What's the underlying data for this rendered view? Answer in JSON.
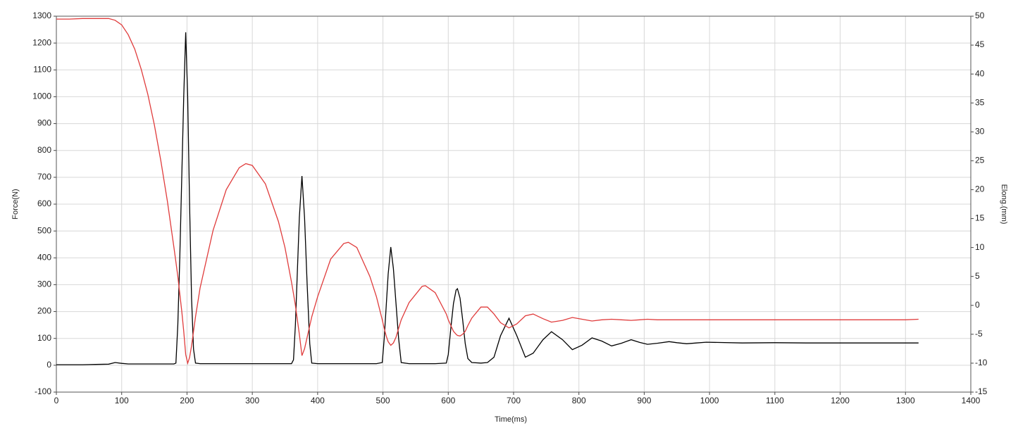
{
  "chart_data": {
    "type": "line",
    "xlabel": "Time(ms)",
    "ylabel": "Force(N)",
    "y2label": "Elong.(mm)",
    "x": [
      0,
      20,
      40,
      60,
      80,
      90,
      100,
      110,
      120,
      130,
      140,
      150,
      160,
      170,
      180,
      183,
      186,
      189,
      192,
      195,
      198,
      201,
      204,
      207,
      210,
      213,
      220,
      240,
      260,
      280,
      290,
      300,
      320,
      340,
      350,
      360,
      363,
      366,
      369,
      372,
      376,
      380,
      384,
      388,
      391,
      400,
      420,
      440,
      447,
      460,
      480,
      490,
      499,
      502,
      505,
      508,
      512,
      516,
      520,
      524,
      528,
      540,
      560,
      565,
      580,
      597,
      600,
      604,
      608,
      612,
      614,
      618,
      622,
      626,
      630,
      636,
      650,
      660,
      670,
      680,
      693,
      705,
      718,
      730,
      745,
      758,
      775,
      790,
      805,
      820,
      835,
      850,
      865,
      880,
      893,
      905,
      920,
      938,
      950,
      965,
      980,
      995,
      1050,
      1100,
      1150,
      1200,
      1250,
      1300,
      1320
    ],
    "series": [
      {
        "color": "#000000",
        "values": [
          2,
          2,
          2,
          3,
          4,
          10,
          7,
          5,
          5,
          5,
          5,
          5,
          5,
          5,
          5,
          8,
          150,
          400,
          700,
          1000,
          1240,
          1000,
          600,
          250,
          60,
          8,
          6,
          6,
          6,
          6,
          6,
          6,
          6,
          6,
          6,
          6,
          20,
          150,
          350,
          550,
          705,
          550,
          300,
          80,
          8,
          6,
          6,
          6,
          6,
          6,
          6,
          6,
          10,
          100,
          220,
          340,
          440,
          360,
          230,
          100,
          10,
          6,
          6,
          6,
          6,
          8,
          40,
          140,
          230,
          280,
          285,
          250,
          170,
          80,
          25,
          10,
          8,
          10,
          30,
          110,
          175,
          110,
          30,
          45,
          95,
          125,
          95,
          58,
          75,
          102,
          90,
          72,
          82,
          95,
          85,
          78,
          82,
          88,
          84,
          80,
          83,
          86,
          83,
          84,
          83,
          83,
          83,
          83,
          83
        ]
      },
      {
        "color": "#e03c3c",
        "axis": "y2",
        "values": [
          49.5,
          49.5,
          49.6,
          49.6,
          49.6,
          49.3,
          48.5,
          46.8,
          44.3,
          40.8,
          36.5,
          31.2,
          25,
          18,
          10,
          7.5,
          5,
          2,
          -1,
          -4.5,
          -8.5,
          -10,
          -9,
          -7,
          -4.5,
          -2,
          3,
          13,
          20,
          23.8,
          24.5,
          24.2,
          21,
          14.5,
          10,
          4,
          2,
          0,
          -2.5,
          -5,
          -8.7,
          -7.5,
          -5.5,
          -3.5,
          -2,
          1.5,
          8,
          10.7,
          10.9,
          10,
          5,
          1.5,
          -2.5,
          -4,
          -5.3,
          -6.3,
          -6.9,
          -6.5,
          -5.5,
          -4,
          -2.5,
          0.5,
          3.3,
          3.4,
          2.2,
          -1.5,
          -2.5,
          -3.5,
          -4.5,
          -5,
          -5.2,
          -5.3,
          -5,
          -4.5,
          -3.5,
          -2.2,
          -0.3,
          -0.3,
          -1.5,
          -3,
          -3.9,
          -3.2,
          -1.8,
          -1.5,
          -2.3,
          -2.9,
          -2.6,
          -2.1,
          -2.4,
          -2.7,
          -2.5,
          -2.4,
          -2.5,
          -2.6,
          -2.5,
          -2.4,
          -2.5,
          -2.5,
          -2.5,
          -2.5,
          -2.5,
          -2.5,
          -2.5,
          -2.5,
          -2.5,
          -2.5,
          -2.5,
          -2.5,
          -2.4
        ]
      }
    ],
    "xlim": [
      0,
      1400
    ],
    "xticks": [
      0,
      100,
      200,
      300,
      400,
      500,
      600,
      700,
      800,
      900,
      1000,
      1100,
      1200,
      1300,
      1400
    ],
    "ylim": [
      -100,
      1300
    ],
    "yticks": [
      -100,
      0,
      100,
      200,
      300,
      400,
      500,
      600,
      700,
      800,
      900,
      1000,
      1100,
      1200,
      1300
    ],
    "y2lim": [
      -15,
      50
    ],
    "y2ticks": [
      -15,
      -10,
      -5,
      0,
      5,
      10,
      15,
      20,
      25,
      30,
      35,
      40,
      45,
      50
    ],
    "grid": true
  }
}
